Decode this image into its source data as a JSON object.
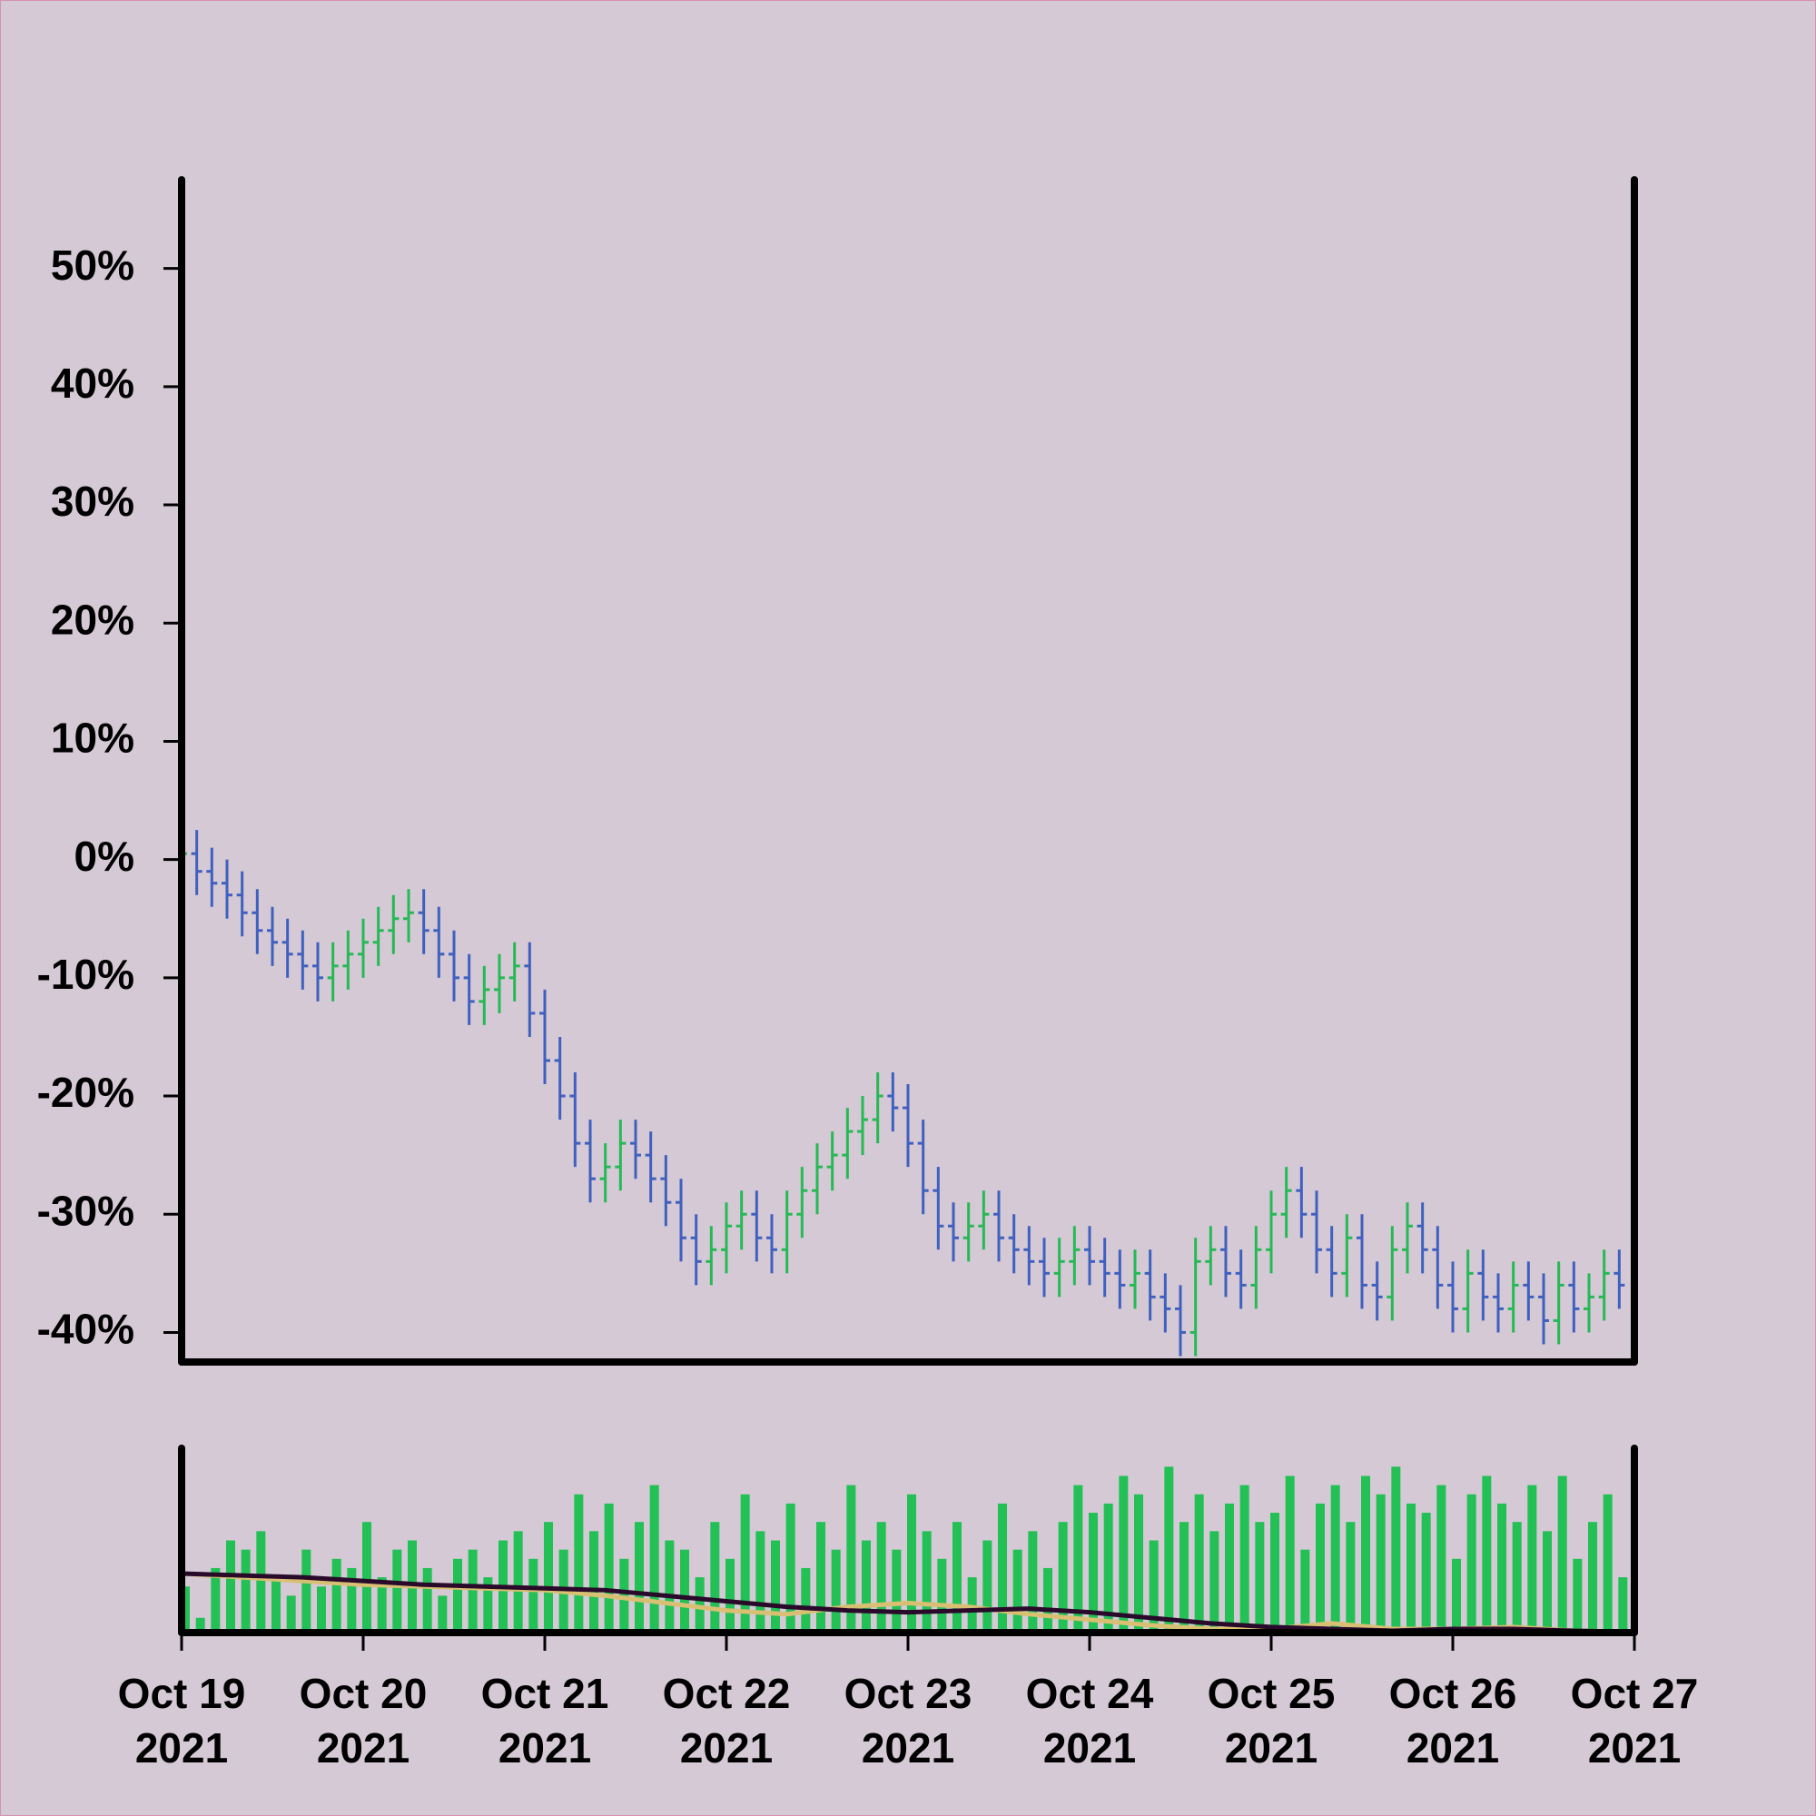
{
  "chart_data": {
    "type": "ohlc",
    "x": [
      0,
      2,
      4,
      6,
      8,
      10,
      12,
      14,
      16,
      18,
      20,
      22,
      24,
      26,
      28,
      30,
      32,
      34,
      36,
      38,
      40,
      42,
      44,
      46,
      48,
      50,
      52,
      54,
      56,
      58,
      60,
      62,
      64,
      66,
      68,
      70,
      72,
      74,
      76,
      78,
      80,
      82,
      84,
      86,
      88,
      90,
      92,
      94,
      96,
      98,
      100,
      102,
      104,
      106,
      108,
      110,
      112,
      114,
      116,
      118,
      120,
      122,
      124,
      126,
      128,
      130,
      132,
      134,
      136,
      138,
      140,
      142,
      144,
      146,
      148,
      150,
      152,
      154,
      156,
      158,
      160,
      162,
      164,
      166,
      168,
      170,
      172,
      174,
      176,
      178,
      180,
      182,
      184,
      186,
      188,
      190
    ],
    "open": [
      0,
      0.5,
      -1,
      -2,
      -3,
      -4.5,
      -6,
      -7,
      -8,
      -9,
      -10,
      -9,
      -8,
      -7,
      -6,
      -5,
      -4.5,
      -6,
      -8,
      -10,
      -12,
      -11,
      -10,
      -9,
      -13,
      -17,
      -20,
      -24,
      -27,
      -26,
      -24,
      -25,
      -27,
      -29,
      -32,
      -34,
      -33,
      -31,
      -30,
      -32,
      -33,
      -30,
      -28,
      -26,
      -25,
      -23,
      -22,
      -20,
      -21,
      -24,
      -28,
      -31,
      -32,
      -31,
      -30,
      -32,
      -33,
      -34,
      -35,
      -34,
      -33,
      -34,
      -35,
      -36,
      -35,
      -37,
      -38,
      -40,
      -34,
      -33,
      -35,
      -36,
      -33,
      -30,
      -28,
      -30,
      -33,
      -35,
      -32,
      -36,
      -37,
      -33,
      -31,
      -33,
      -36,
      -38,
      -35,
      -37,
      -38,
      -36,
      -37,
      -39,
      -36,
      -38,
      -37,
      -35
    ],
    "high": [
      2.5,
      2.5,
      1,
      0,
      -1,
      -2.5,
      -4,
      -5,
      -6,
      -7,
      -7,
      -6,
      -5,
      -4,
      -3,
      -2.5,
      -2.5,
      -4,
      -6,
      -8,
      -9,
      -8,
      -7,
      -7,
      -11,
      -15,
      -18,
      -22,
      -24,
      -22,
      -22,
      -23,
      -25,
      -27,
      -30,
      -31,
      -29,
      -28,
      -28,
      -30,
      -28,
      -26,
      -24,
      -23,
      -21,
      -20,
      -18,
      -18,
      -19,
      -22,
      -26,
      -29,
      -29,
      -28,
      -28,
      -30,
      -31,
      -32,
      -32,
      -31,
      -31,
      -32,
      -33,
      -33,
      -33,
      -35,
      -36,
      -32,
      -31,
      -31,
      -33,
      -31,
      -28,
      -26,
      -26,
      -28,
      -31,
      -30,
      -30,
      -34,
      -31,
      -29,
      -29,
      -31,
      -34,
      -33,
      -33,
      -35,
      -34,
      -34,
      -35,
      -34,
      -34,
      -35,
      -33,
      -33
    ],
    "low": [
      -2,
      -3,
      -4,
      -5,
      -6.5,
      -8,
      -9,
      -10,
      -11,
      -12,
      -12,
      -11,
      -10,
      -9,
      -8,
      -7,
      -8,
      -10,
      -12,
      -14,
      -14,
      -13,
      -12,
      -15,
      -19,
      -22,
      -26,
      -29,
      -29,
      -28,
      -27,
      -29,
      -31,
      -34,
      -36,
      -36,
      -35,
      -33,
      -34,
      -35,
      -35,
      -32,
      -30,
      -28,
      -27,
      -25,
      -24,
      -23,
      -26,
      -30,
      -33,
      -34,
      -34,
      -33,
      -34,
      -35,
      -36,
      -37,
      -37,
      -36,
      -36,
      -37,
      -38,
      -38,
      -39,
      -40,
      -42,
      -42,
      -36,
      -37,
      -38,
      -38,
      -35,
      -32,
      -32,
      -35,
      -37,
      -37,
      -38,
      -39,
      -39,
      -35,
      -35,
      -38,
      -40,
      -40,
      -39,
      -40,
      -40,
      -39,
      -41,
      -41,
      -40,
      -40,
      -39,
      -38
    ],
    "close": [
      0.5,
      -1,
      -2,
      -3,
      -4.5,
      -6,
      -7,
      -8,
      -9,
      -10,
      -9,
      -8,
      -7,
      -6,
      -5,
      -4.5,
      -6,
      -8,
      -10,
      -12,
      -11,
      -10,
      -9,
      -13,
      -17,
      -20,
      -24,
      -27,
      -26,
      -24,
      -25,
      -27,
      -29,
      -32,
      -34,
      -33,
      -31,
      -30,
      -32,
      -33,
      -30,
      -28,
      -26,
      -25,
      -23,
      -22,
      -20,
      -21,
      -24,
      -28,
      -31,
      -32,
      -31,
      -30,
      -32,
      -33,
      -34,
      -35,
      -34,
      -33,
      -34,
      -35,
      -36,
      -35,
      -37,
      -38,
      -40,
      -34,
      -33,
      -35,
      -36,
      -33,
      -30,
      -28,
      -30,
      -33,
      -35,
      -32,
      -36,
      -37,
      -33,
      -31,
      -33,
      -36,
      -38,
      -35,
      -37,
      -38,
      -36,
      -37,
      -39,
      -36,
      -38,
      -37,
      -35,
      -36
    ],
    "up_color": "#26b955",
    "down_color": "#4060c0",
    "ylim": [
      -42.5,
      57.5
    ],
    "yticks": [
      {
        "value": -40,
        "label": "-40%"
      },
      {
        "value": -30,
        "label": "-30%"
      },
      {
        "value": -20,
        "label": "-20%"
      },
      {
        "value": -10,
        "label": "-10%"
      },
      {
        "value": 0,
        "label": "0%"
      },
      {
        "value": 10,
        "label": "10%"
      },
      {
        "value": 20,
        "label": "20%"
      },
      {
        "value": 30,
        "label": "30%"
      },
      {
        "value": 40,
        "label": "40%"
      },
      {
        "value": 50,
        "label": "50%"
      }
    ],
    "xlim": [
      0,
      192
    ],
    "xticks": [
      {
        "value": 0,
        "label": "Oct 19\n2021"
      },
      {
        "value": 24,
        "label": "Oct 20\n2021"
      },
      {
        "value": 48,
        "label": "Oct 21\n2021"
      },
      {
        "value": 72,
        "label": "Oct 22\n2021"
      },
      {
        "value": 96,
        "label": "Oct 23\n2021"
      },
      {
        "value": 120,
        "label": "Oct 24\n2021"
      },
      {
        "value": 144,
        "label": "Oct 25\n2021"
      },
      {
        "value": 168,
        "label": "Oct 26\n2021"
      },
      {
        "value": 192,
        "label": "Oct 27\n2021"
      }
    ],
    "volume": {
      "color": "#22c055",
      "ylim": [
        0,
        100
      ],
      "values": [
        25,
        8,
        35,
        50,
        45,
        55,
        30,
        20,
        45,
        25,
        40,
        35,
        60,
        30,
        45,
        50,
        35,
        20,
        40,
        45,
        30,
        50,
        55,
        40,
        60,
        45,
        75,
        55,
        70,
        40,
        60,
        80,
        50,
        45,
        30,
        60,
        40,
        75,
        55,
        50,
        70,
        35,
        60,
        45,
        80,
        50,
        60,
        45,
        75,
        55,
        40,
        60,
        30,
        50,
        70,
        45,
        55,
        35,
        60,
        80,
        65,
        70,
        85,
        75,
        50,
        90,
        60,
        75,
        55,
        70,
        80,
        60,
        65,
        85,
        45,
        70,
        80,
        60,
        85,
        75,
        90,
        70,
        65,
        80,
        40,
        75,
        85,
        70,
        60,
        80,
        55,
        85,
        40,
        60,
        75,
        30
      ],
      "ma": [
        {
          "color": "#d8bf72",
          "x": [
            0,
            8,
            16,
            24,
            32,
            40,
            48,
            56,
            64,
            72,
            80,
            88,
            96,
            104,
            112,
            120,
            128,
            136,
            144,
            152,
            160,
            168,
            176,
            184,
            190
          ],
          "values": [
            32,
            30,
            28,
            26,
            25,
            24,
            23,
            20,
            16,
            12,
            10,
            14,
            16,
            14,
            10,
            7,
            4,
            2,
            2,
            5,
            2,
            2,
            3,
            1,
            0.5
          ]
        },
        {
          "color": "#2a0a2a",
          "x": [
            0,
            8,
            16,
            24,
            32,
            40,
            48,
            56,
            64,
            72,
            80,
            88,
            96,
            104,
            112,
            120,
            128,
            136,
            144,
            152,
            160,
            168,
            176,
            184,
            190
          ],
          "values": [
            32,
            31,
            30,
            28,
            26,
            25,
            24,
            23,
            20,
            17,
            14,
            12,
            11,
            12,
            13,
            11,
            8,
            5,
            3,
            2,
            1,
            2,
            2,
            1,
            0.5
          ]
        }
      ]
    }
  }
}
